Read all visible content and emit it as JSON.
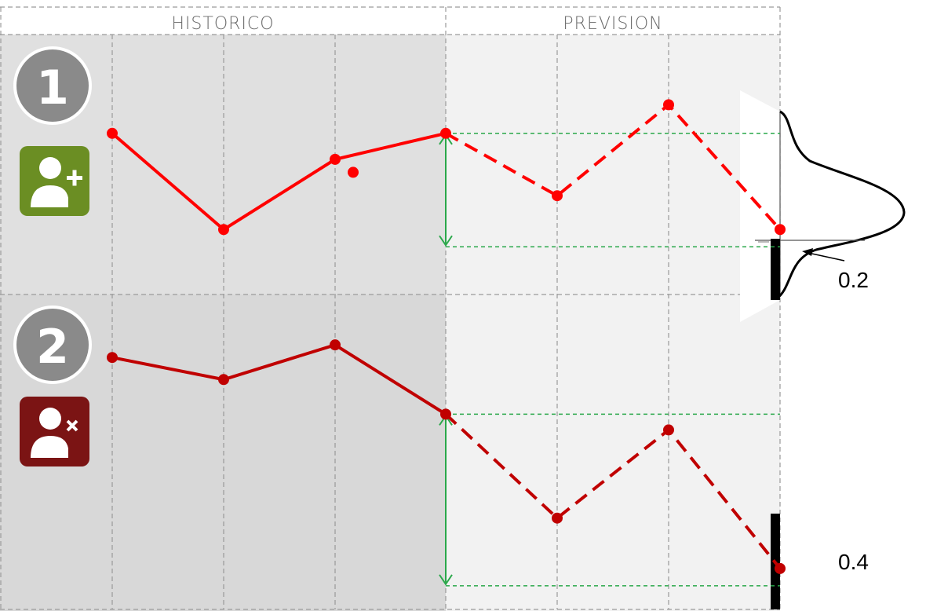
{
  "header": {
    "historic_label": "HISTORICO",
    "forecast_label": "PREVISION"
  },
  "rows": [
    {
      "number": "1",
      "icon": "user-add-icon",
      "icon_color": "#6b8e23",
      "line_color": "#ff0000",
      "historic": [
        0.62,
        0.25,
        0.52,
        0.62
      ],
      "extra_point": 0.47,
      "forecast": [
        0.62,
        0.38,
        0.73,
        0.25
      ],
      "probability": "0.2"
    },
    {
      "number": "2",
      "icon": "user-remove-icon",
      "icon_color": "#7b1414",
      "line_color": "#c00000",
      "historic": [
        0.8,
        0.73,
        0.84,
        0.62
      ],
      "forecast": [
        0.62,
        0.29,
        0.57,
        0.13
      ],
      "probability": "0.4"
    }
  ],
  "colors": {
    "historic_bg": "#e0e0e0",
    "forecast_bg": "#f2f2f2",
    "grid": "#9a9a9a",
    "range_arrow": "#2aa84a"
  }
}
